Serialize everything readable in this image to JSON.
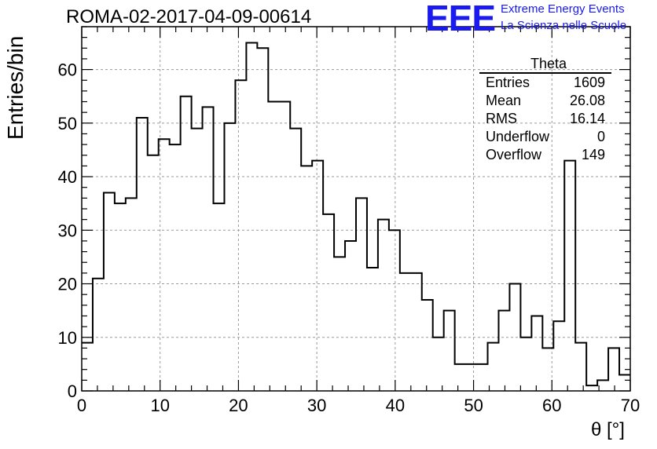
{
  "chart_data": {
    "type": "histogram",
    "title": "ROMA-02-2017-04-09-00614",
    "xlabel": "θ [°]",
    "ylabel": "Entries/bin",
    "xlim": [
      0,
      70
    ],
    "ylim": [
      0,
      68
    ],
    "bin_width": 1.4,
    "xticks": [
      0,
      10,
      20,
      30,
      40,
      50,
      60,
      70
    ],
    "yticks": [
      0,
      10,
      20,
      30,
      40,
      50,
      60
    ],
    "grid": true,
    "values": [
      9,
      21,
      37,
      35,
      36,
      51,
      44,
      47,
      46,
      55,
      49,
      53,
      35,
      50,
      58,
      65,
      64,
      54,
      54,
      49,
      42,
      43,
      33,
      25,
      28,
      36,
      23,
      32,
      30,
      22,
      22,
      17,
      10,
      15,
      5,
      5,
      5,
      9,
      15,
      20,
      10,
      14,
      8,
      13,
      43,
      9,
      1,
      2,
      8,
      3
    ]
  },
  "stats": {
    "title": "Theta",
    "rows": [
      {
        "key": "Entries",
        "value": "1609"
      },
      {
        "key": "Mean",
        "value": "26.08"
      },
      {
        "key": "RMS",
        "value": "16.14"
      },
      {
        "key": "Underflow",
        "value": "0"
      },
      {
        "key": "Overflow",
        "value": "149"
      }
    ]
  },
  "logo": {
    "mark": "EEE",
    "line1": "Extreme Energy Events",
    "line2": "La Scienza nelle Scuole",
    "color": "#1a1aee"
  }
}
